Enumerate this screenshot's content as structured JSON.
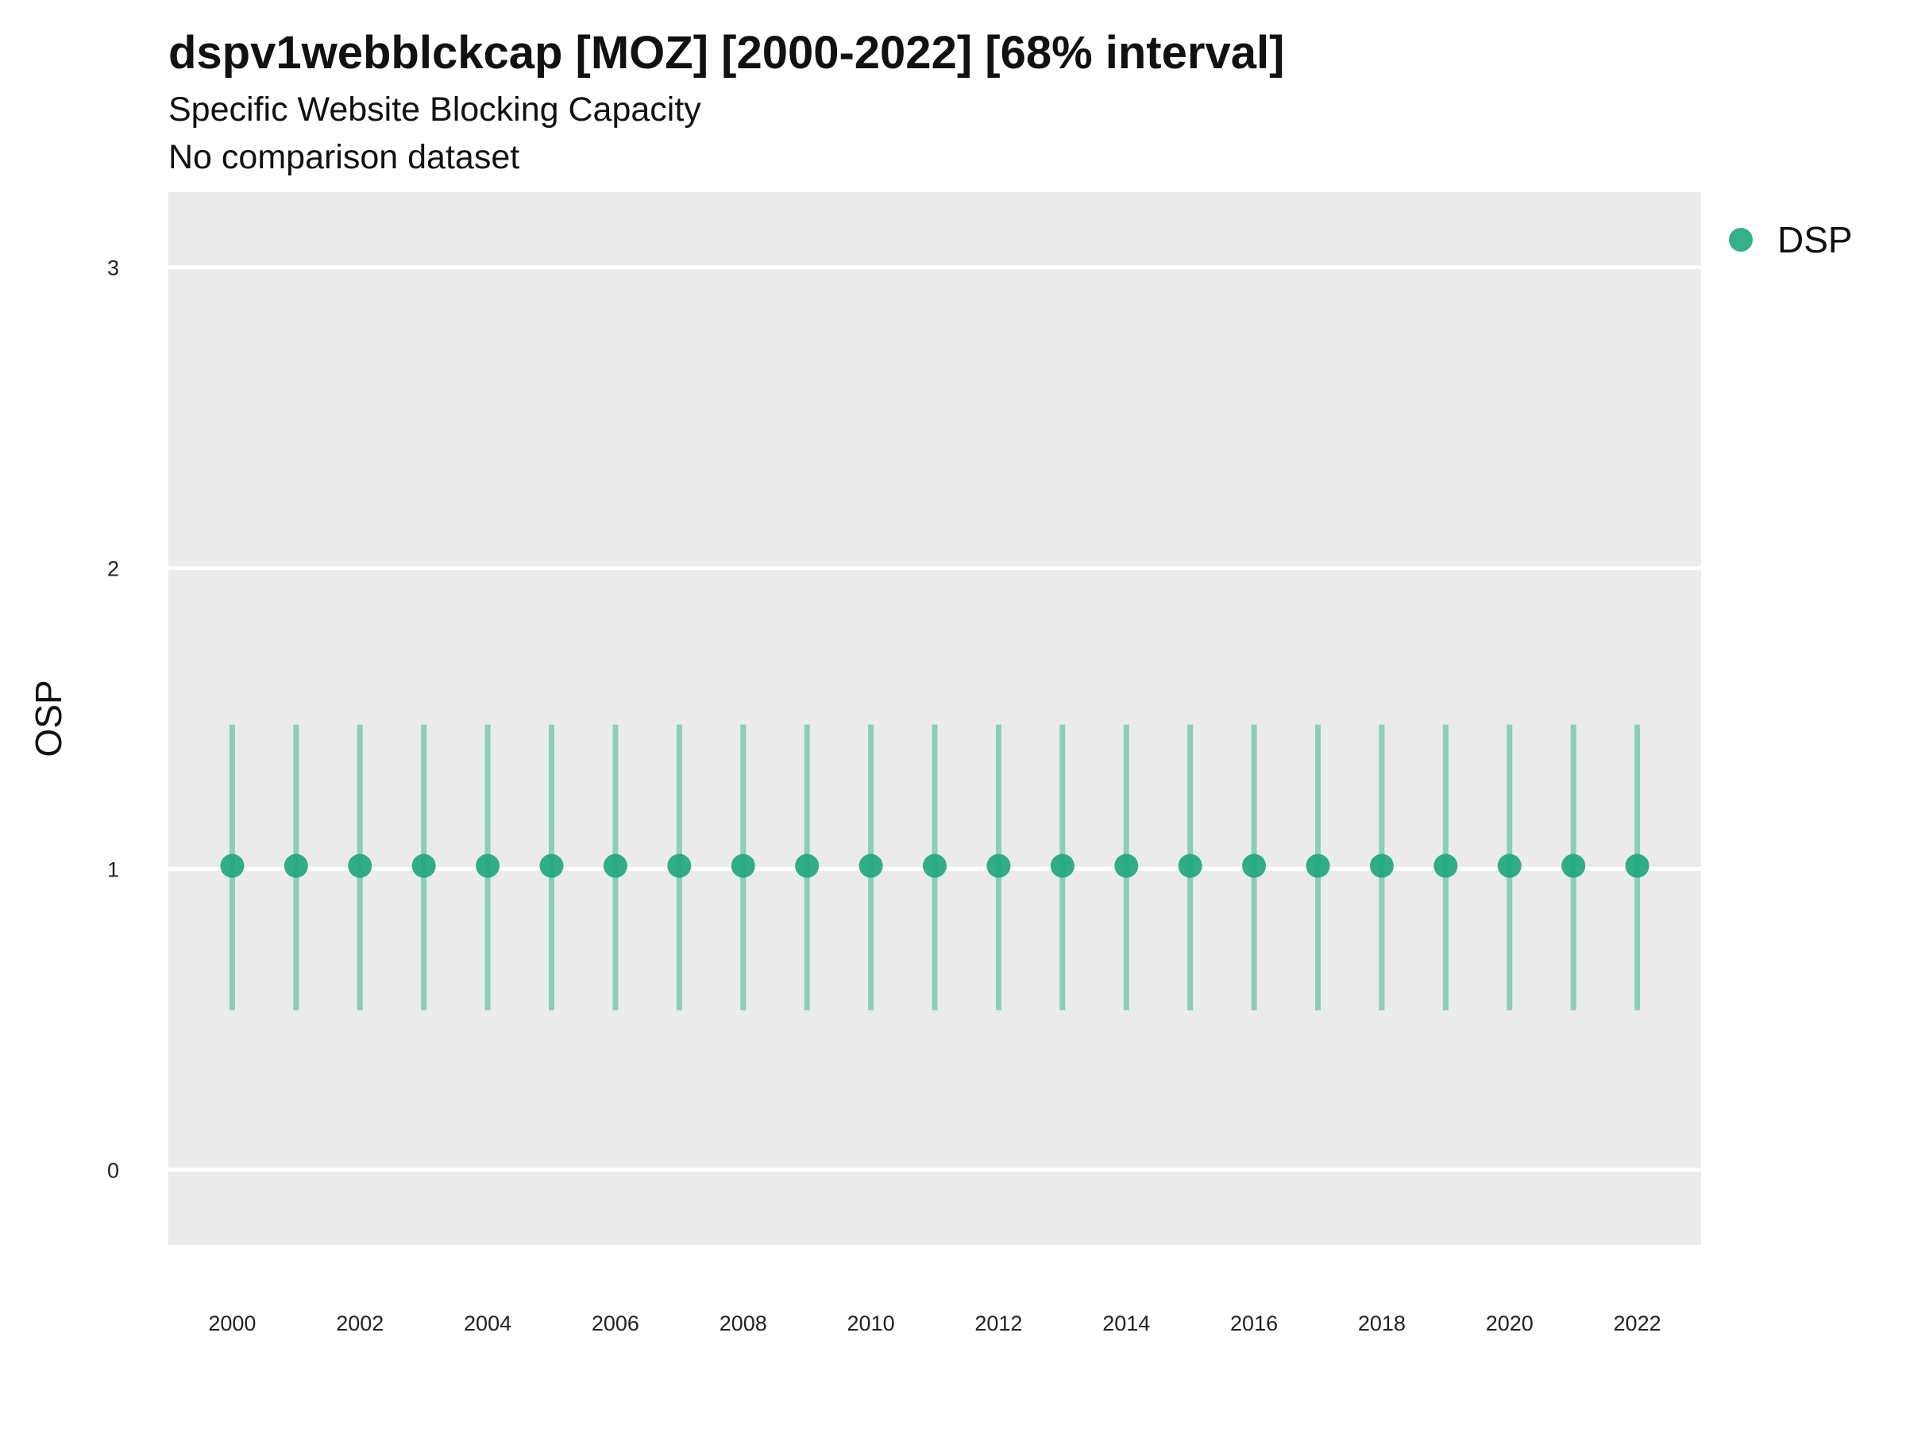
{
  "chart_data": {
    "type": "scatter",
    "title": "dspv1webblckcap [MOZ] [2000-2022] [68% interval]",
    "subtitle": "Specific Website Blocking Capacity",
    "subtitle2": "No comparison dataset",
    "xlabel": "",
    "ylabel": "OSP",
    "xlim": [
      1999,
      2023
    ],
    "ylim": [
      -0.25,
      3.25
    ],
    "yticks": [
      0,
      1,
      2,
      3
    ],
    "xticks": [
      2000,
      2002,
      2004,
      2006,
      2008,
      2010,
      2012,
      2014,
      2016,
      2018,
      2020,
      2022
    ],
    "grid": true,
    "legend_position": "top-right",
    "colors": {
      "series": "#1fa77f",
      "interval": "#8ccfb8",
      "panel": "#ebebeb",
      "grid": "#ffffff"
    },
    "series": [
      {
        "name": "DSP",
        "x": [
          2000,
          2001,
          2002,
          2003,
          2004,
          2005,
          2006,
          2007,
          2008,
          2009,
          2010,
          2011,
          2012,
          2013,
          2014,
          2015,
          2016,
          2017,
          2018,
          2019,
          2020,
          2021,
          2022
        ],
        "values": [
          1.01,
          1.01,
          1.01,
          1.01,
          1.01,
          1.01,
          1.01,
          1.01,
          1.01,
          1.01,
          1.01,
          1.01,
          1.01,
          1.01,
          1.01,
          1.01,
          1.01,
          1.01,
          1.01,
          1.01,
          1.01,
          1.01,
          1.01
        ],
        "lower": [
          0.53,
          0.53,
          0.53,
          0.53,
          0.53,
          0.53,
          0.53,
          0.53,
          0.53,
          0.53,
          0.53,
          0.53,
          0.53,
          0.53,
          0.53,
          0.53,
          0.53,
          0.53,
          0.53,
          0.53,
          0.53,
          0.53,
          0.53
        ],
        "upper": [
          1.48,
          1.48,
          1.48,
          1.48,
          1.48,
          1.48,
          1.48,
          1.48,
          1.48,
          1.48,
          1.48,
          1.48,
          1.48,
          1.48,
          1.48,
          1.48,
          1.48,
          1.48,
          1.48,
          1.48,
          1.48,
          1.48,
          1.48
        ]
      }
    ]
  }
}
